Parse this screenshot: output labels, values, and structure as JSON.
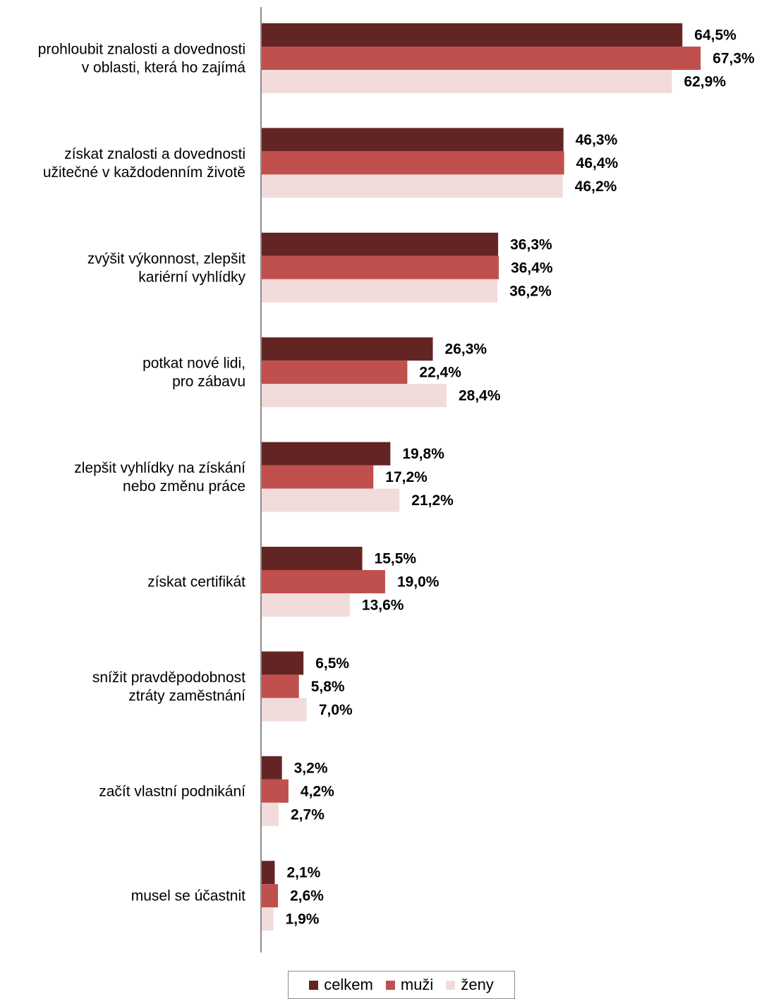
{
  "chart_data": {
    "type": "bar",
    "orientation": "horizontal",
    "categories": [
      [
        "prohloubit znalosti a dovednosti",
        "v oblasti, která ho zajímá"
      ],
      [
        "získat znalosti a dovednosti",
        "užitečné v každodenním životě"
      ],
      [
        "zvýšit výkonnost, zlepšit",
        "kariérní vyhlídky"
      ],
      [
        "potkat nové lidi,",
        "pro zábavu"
      ],
      [
        "zlepšit vyhlídky na získání",
        "nebo změnu práce"
      ],
      [
        "získat certifikát"
      ],
      [
        "snížit pravděpodobnost",
        "ztráty zaměstnání"
      ],
      [
        "začít vlastní podnikání"
      ],
      [
        "musel se účastnit"
      ]
    ],
    "series": [
      {
        "name": "celkem",
        "color": "#632523",
        "values": [
          64.5,
          46.3,
          36.3,
          26.3,
          19.8,
          15.5,
          6.5,
          3.2,
          2.1
        ],
        "labels": [
          "64,5%",
          "46,3%",
          "36,3%",
          "26,3%",
          "19,8%",
          "15,5%",
          "6,5%",
          "3,2%",
          "2,1%"
        ]
      },
      {
        "name": "muži",
        "color": "#c0504d",
        "values": [
          67.3,
          46.4,
          36.4,
          22.4,
          17.2,
          19.0,
          5.8,
          4.2,
          2.6
        ],
        "labels": [
          "67,3%",
          "46,4%",
          "36,4%",
          "22,4%",
          "17,2%",
          "19,0%",
          "5,8%",
          "4,2%",
          "2,6%"
        ]
      },
      {
        "name": "ženy",
        "color": "#f2dcdb",
        "values": [
          62.9,
          46.2,
          36.2,
          28.4,
          21.2,
          13.6,
          7.0,
          2.7,
          1.9
        ],
        "labels": [
          "62,9%",
          "46,2%",
          "36,2%",
          "28,4%",
          "21,2%",
          "13,6%",
          "7,0%",
          "2,7%",
          "1,9%"
        ]
      }
    ],
    "xlim": [
      0,
      70
    ],
    "grid": false,
    "legend": "bottom"
  }
}
